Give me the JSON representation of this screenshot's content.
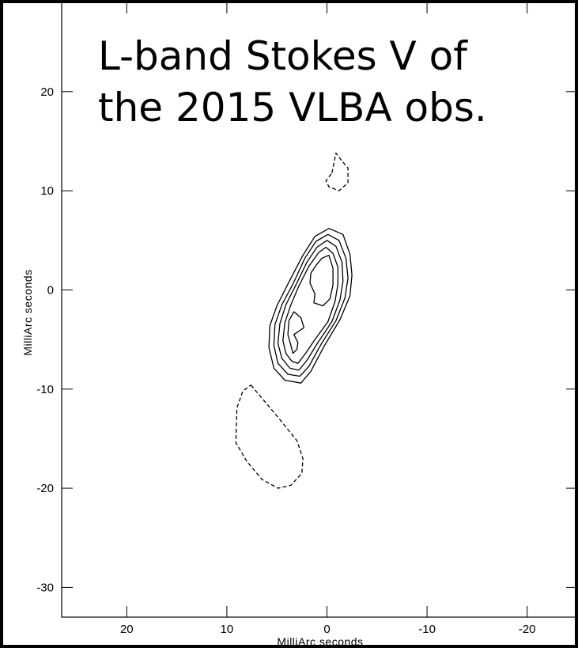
{
  "chart_data": {
    "type": "contour",
    "title_lines": [
      "L-band Stokes V of",
      "the 2015 VLBA obs."
    ],
    "xlabel": "MilliArc seconds",
    "ylabel": "MilliArc seconds",
    "xlim": [
      26.5,
      -25
    ],
    "ylim": [
      -33,
      29
    ],
    "xticks": [
      {
        "value": 20,
        "label": "20"
      },
      {
        "value": 10,
        "label": "10"
      },
      {
        "value": 0,
        "label": "0"
      },
      {
        "value": -10,
        "label": "-10"
      },
      {
        "value": -20,
        "label": "-20"
      }
    ],
    "yticks": [
      {
        "value": 20,
        "label": "20"
      },
      {
        "value": 10,
        "label": "10"
      },
      {
        "value": 0,
        "label": "0"
      },
      {
        "value": -10,
        "label": "-10"
      },
      {
        "value": -20,
        "label": "-20"
      },
      {
        "value": -30,
        "label": "-30"
      }
    ],
    "colors": {
      "background": "#ffffff",
      "frame": "#000000",
      "contour": "#000000",
      "outer": "#000000"
    },
    "contours": [
      {
        "style": "dashed",
        "points": [
          [
            -0.5,
            11.8
          ],
          [
            -0.9,
            13.8
          ],
          [
            -1.5,
            13.0
          ],
          [
            -2.1,
            12.3
          ],
          [
            -2.1,
            10.8
          ],
          [
            -1.2,
            10.0
          ],
          [
            -0.2,
            10.4
          ],
          [
            0.1,
            11.0
          ]
        ]
      },
      {
        "style": "dashed",
        "points": [
          [
            7.6,
            -9.6
          ],
          [
            6.0,
            -11.5
          ],
          [
            4.6,
            -13.2
          ],
          [
            3.0,
            -15.2
          ],
          [
            2.4,
            -17.0
          ],
          [
            2.5,
            -18.5
          ],
          [
            3.6,
            -19.7
          ],
          [
            4.9,
            -20.0
          ],
          [
            6.5,
            -19.1
          ],
          [
            8.0,
            -17.3
          ],
          [
            9.1,
            -15.4
          ],
          [
            9.0,
            -11.9
          ],
          [
            8.4,
            -10.2
          ]
        ]
      },
      {
        "style": "solid",
        "points": [
          [
            -0.2,
            6.2
          ],
          [
            -1.6,
            5.6
          ],
          [
            -2.3,
            3.6
          ],
          [
            -2.5,
            1.5
          ],
          [
            -2.3,
            -0.6
          ],
          [
            -1.3,
            -3.0
          ],
          [
            0.3,
            -5.7
          ],
          [
            1.6,
            -8.2
          ],
          [
            2.6,
            -9.4
          ],
          [
            4.2,
            -9.1
          ],
          [
            5.3,
            -7.9
          ],
          [
            5.8,
            -5.8
          ],
          [
            5.7,
            -3.6
          ],
          [
            5.0,
            -1.6
          ],
          [
            3.8,
            0.8
          ],
          [
            2.4,
            3.5
          ],
          [
            1.2,
            5.4
          ]
        ]
      },
      {
        "style": "solid",
        "points": [
          [
            -0.1,
            5.6
          ],
          [
            -1.2,
            5.0
          ],
          [
            -1.9,
            3.2
          ],
          [
            -2.1,
            1.2
          ],
          [
            -1.8,
            -0.8
          ],
          [
            -0.9,
            -3.1
          ],
          [
            0.6,
            -5.5
          ],
          [
            1.8,
            -7.7
          ],
          [
            2.7,
            -8.7
          ],
          [
            3.9,
            -8.5
          ],
          [
            4.9,
            -7.4
          ],
          [
            5.3,
            -5.6
          ],
          [
            5.2,
            -3.5
          ],
          [
            4.5,
            -1.5
          ],
          [
            3.4,
            0.6
          ],
          [
            2.2,
            3.2
          ],
          [
            1.1,
            4.9
          ]
        ]
      },
      {
        "style": "solid",
        "points": [
          [
            0.0,
            5.0
          ],
          [
            -0.9,
            4.4
          ],
          [
            -1.5,
            2.8
          ],
          [
            -1.6,
            0.9
          ],
          [
            -1.3,
            -1.0
          ],
          [
            -0.5,
            -3.2
          ],
          [
            0.9,
            -5.3
          ],
          [
            2.0,
            -7.1
          ],
          [
            2.8,
            -8.1
          ],
          [
            3.7,
            -7.9
          ],
          [
            4.5,
            -6.9
          ],
          [
            4.9,
            -5.4
          ],
          [
            4.7,
            -3.4
          ],
          [
            4.1,
            -1.5
          ],
          [
            3.1,
            0.5
          ],
          [
            2.0,
            2.8
          ],
          [
            1.0,
            4.3
          ]
        ]
      },
      {
        "style": "solid",
        "points": [
          [
            0.1,
            4.3
          ],
          [
            -0.6,
            3.7
          ],
          [
            -1.1,
            2.3
          ],
          [
            -1.1,
            0.6
          ],
          [
            -0.8,
            -1.2
          ],
          [
            -0.1,
            -3.2
          ],
          [
            1.2,
            -5.0
          ],
          [
            2.2,
            -6.5
          ],
          [
            2.9,
            -7.4
          ],
          [
            3.5,
            -7.2
          ],
          [
            4.1,
            -6.4
          ],
          [
            4.4,
            -5.1
          ],
          [
            4.2,
            -3.3
          ],
          [
            3.6,
            -1.5
          ],
          [
            2.8,
            0.4
          ],
          [
            1.8,
            2.4
          ],
          [
            0.8,
            3.8
          ]
        ]
      },
      {
        "style": "solid",
        "points": [
          [
            -0.2,
            3.5
          ],
          [
            -0.6,
            2.2
          ],
          [
            -0.6,
            0.5
          ],
          [
            -0.3,
            -0.9
          ],
          [
            0.4,
            -1.6
          ],
          [
            1.3,
            -1.3
          ],
          [
            1.2,
            -0.4
          ],
          [
            1.7,
            0.7
          ],
          [
            1.6,
            1.7
          ],
          [
            1.0,
            2.6
          ],
          [
            0.5,
            3.2
          ]
        ]
      },
      {
        "style": "solid",
        "points": [
          [
            3.3,
            -2.2
          ],
          [
            2.6,
            -2.8
          ],
          [
            2.3,
            -3.8
          ],
          [
            3.3,
            -4.5
          ],
          [
            2.9,
            -5.3
          ],
          [
            3.0,
            -6.0
          ],
          [
            3.4,
            -6.4
          ],
          [
            3.6,
            -5.6
          ],
          [
            3.9,
            -4.5
          ],
          [
            3.8,
            -3.1
          ]
        ]
      }
    ]
  }
}
